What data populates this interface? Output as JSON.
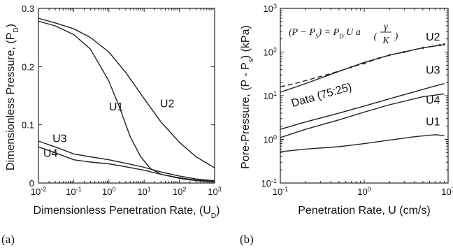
{
  "chart_data": [
    {
      "type": "line",
      "panel_label": "(a)",
      "xlabel": "Dimensionless Penetration Rate, (U",
      "xlabel_sub": "D",
      "xlabel_end": ")",
      "ylabel": "Dimensionless Pressure, (P",
      "ylabel_sub": "D",
      "ylabel_end": ")",
      "xscale": "log",
      "xlim": [
        0.01,
        1000
      ],
      "ylim": [
        0,
        0.3
      ],
      "x_ticks": [
        {
          "value": 0.01,
          "base": "10",
          "exp": "-2"
        },
        {
          "value": 0.1,
          "base": "10",
          "exp": "-1"
        },
        {
          "value": 1,
          "base": "10",
          "exp": "0"
        },
        {
          "value": 10,
          "base": "10",
          "exp": "1"
        },
        {
          "value": 100,
          "base": "10",
          "exp": "2"
        },
        {
          "value": 1000,
          "base": "10",
          "exp": "3"
        }
      ],
      "y_ticks": [
        {
          "value": 0,
          "label": "0"
        },
        {
          "value": 0.1,
          "label": "0.1"
        },
        {
          "value": 0.2,
          "label": "0.2"
        },
        {
          "value": 0.3,
          "label": "0.3"
        }
      ],
      "series": [
        {
          "name": "U1",
          "label_at": [
            1.6,
            0.125
          ],
          "x": [
            0.01,
            0.03,
            0.1,
            0.3,
            1,
            2,
            4,
            8,
            15,
            30,
            100,
            300,
            1000
          ],
          "y": [
            0.278,
            0.27,
            0.255,
            0.23,
            0.175,
            0.13,
            0.08,
            0.045,
            0.025,
            0.015,
            0.008,
            0.004,
            0.002
          ]
        },
        {
          "name": "U2",
          "label_at": [
            45,
            0.13
          ],
          "x": [
            0.01,
            0.03,
            0.1,
            0.3,
            1,
            3,
            10,
            30,
            100,
            300,
            1000
          ],
          "y": [
            0.283,
            0.275,
            0.265,
            0.25,
            0.225,
            0.19,
            0.145,
            0.105,
            0.07,
            0.045,
            0.026
          ]
        },
        {
          "name": "U3",
          "label_at": [
            0.04,
            0.07
          ],
          "x": [
            0.01,
            0.03,
            0.1,
            0.3,
            1,
            3,
            10,
            30,
            100,
            300,
            1000
          ],
          "y": [
            0.072,
            0.062,
            0.05,
            0.045,
            0.04,
            0.034,
            0.027,
            0.019,
            0.012,
            0.007,
            0.004
          ]
        },
        {
          "name": "U4",
          "label_at": [
            0.022,
            0.045
          ],
          "x": [
            0.01,
            0.03,
            0.1,
            0.3,
            1,
            3,
            10,
            30,
            100,
            300,
            1000
          ],
          "y": [
            0.062,
            0.052,
            0.04,
            0.036,
            0.033,
            0.028,
            0.022,
            0.015,
            0.009,
            0.005,
            0.003
          ]
        }
      ]
    },
    {
      "type": "line",
      "panel_label": "(b)",
      "xlabel": "Penetration Rate, U (cm/s)",
      "ylabel": "Pore-Pressure, (P - P",
      "ylabel_sub": "s",
      "ylabel_end": ") (kPa)",
      "xscale": "log",
      "yscale": "log",
      "xlim": [
        0.1,
        10
      ],
      "ylim": [
        0.1,
        1000
      ],
      "x_ticks": [
        {
          "value": 0.1,
          "base": "10",
          "exp": "-1"
        },
        {
          "value": 1,
          "base": "10",
          "exp": "0"
        },
        {
          "value": 10,
          "base": "10",
          "exp": "1"
        }
      ],
      "y_ticks": [
        {
          "value": 0.1,
          "base": "10",
          "exp": "-1"
        },
        {
          "value": 1,
          "base": "10",
          "exp": "0"
        },
        {
          "value": 10,
          "base": "10",
          "exp": "1"
        },
        {
          "value": 100,
          "base": "10",
          "exp": "2"
        },
        {
          "value": 1000,
          "base": "10",
          "exp": "3"
        }
      ],
      "equation": {
        "lhs": "(P − P",
        "lhs_sub": "S",
        "mid": ") = P",
        "mid_sub": "D",
        "rest": "U a",
        "num": "γ",
        "den": "K"
      },
      "series": [
        {
          "name": "U2",
          "label_at": [
            6.6,
            185
          ],
          "x": [
            0.1,
            0.2,
            0.5,
            1,
            2,
            5,
            9
          ],
          "y": [
            12,
            19,
            36,
            58,
            85,
            125,
            148
          ]
        },
        {
          "name": "U3",
          "label_at": [
            6.6,
            32
          ],
          "x": [
            0.1,
            0.2,
            0.5,
            1,
            2,
            5,
            9
          ],
          "y": [
            1.7,
            2.5,
            4,
            5.8,
            8.5,
            14,
            19
          ]
        },
        {
          "name": "U4",
          "label_at": [
            6.6,
            6.5
          ],
          "x": [
            0.1,
            0.2,
            0.5,
            1,
            2,
            5,
            9
          ],
          "y": [
            1.1,
            1.7,
            2.8,
            4.2,
            6.2,
            9.5,
            11
          ]
        },
        {
          "name": "U1",
          "label_at": [
            6.6,
            2.1
          ],
          "x": [
            0.1,
            0.2,
            0.5,
            1,
            2,
            4,
            7,
            9
          ],
          "y": [
            0.52,
            0.6,
            0.68,
            0.8,
            0.96,
            1.15,
            1.28,
            1.22
          ]
        },
        {
          "name": "Data (75:25)",
          "style": "dashed",
          "label_at": [
            0.14,
            5.5
          ],
          "x": [
            0.1,
            0.15,
            0.25,
            0.4,
            0.7,
            1,
            1.5,
            2,
            3,
            5,
            8,
            9
          ],
          "y": [
            16,
            19,
            25,
            32,
            45,
            55,
            72,
            85,
            100,
            125,
            145,
            150
          ]
        }
      ]
    }
  ]
}
